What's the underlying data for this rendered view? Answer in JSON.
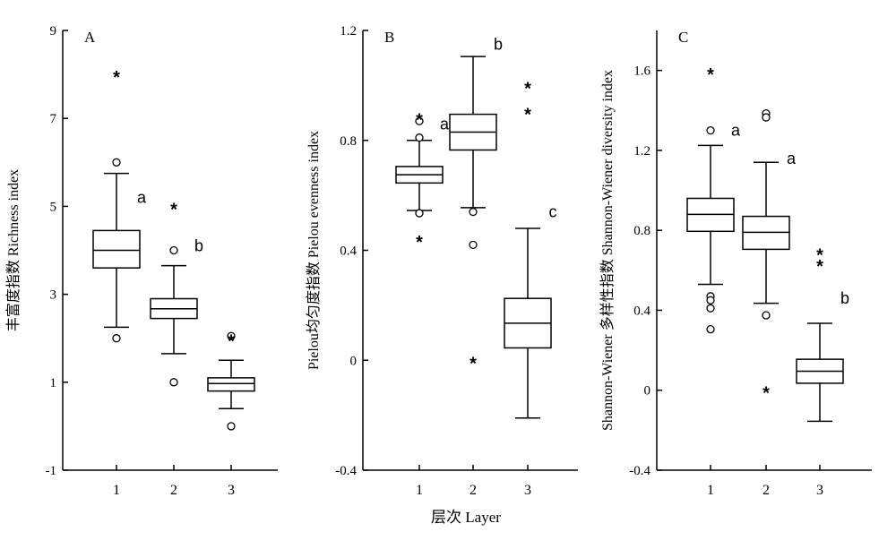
{
  "chart_data": [
    {
      "type": "box",
      "panel_label": "A",
      "ylabel": "丰富度指数 Richness index",
      "ylim": [
        -1,
        9
      ],
      "yticks": [
        -1,
        1,
        3,
        5,
        7,
        9
      ],
      "categories": [
        "1",
        "2",
        "3"
      ],
      "boxes": [
        {
          "whisker_low": 2.25,
          "q1": 3.6,
          "median": 4.0,
          "q3": 4.45,
          "whisker_high": 5.75,
          "outliers": [
            6.0,
            2.0
          ],
          "extremes": [
            8.0
          ],
          "letter": "a",
          "letter_y": 5.2
        },
        {
          "whisker_low": 1.65,
          "q1": 2.45,
          "median": 2.67,
          "q3": 2.9,
          "whisker_high": 3.65,
          "outliers": [
            4.0,
            1.0
          ],
          "extremes": [
            5.0
          ],
          "letter": "b",
          "letter_y": 4.1
        },
        {
          "whisker_low": 0.4,
          "q1": 0.8,
          "median": 0.97,
          "q3": 1.1,
          "whisker_high": 1.5,
          "outliers": [
            2.05,
            0.0
          ],
          "extremes": [
            2.0
          ],
          "letter": "",
          "letter_y": null
        }
      ]
    },
    {
      "type": "box",
      "panel_label": "B",
      "ylabel": "Pielou均匀度指数 Pielou evenness index",
      "ylim": [
        -0.4,
        1.2
      ],
      "yticks": [
        -0.4,
        0,
        0.4,
        0.8,
        1.2
      ],
      "categories": [
        "1",
        "2",
        "3"
      ],
      "boxes": [
        {
          "whisker_low": 0.545,
          "q1": 0.645,
          "median": 0.675,
          "q3": 0.705,
          "whisker_high": 0.8,
          "outliers": [
            0.81,
            0.87,
            0.535
          ],
          "extremes": [
            0.885,
            0.44
          ],
          "letter": "a",
          "letter_y": 0.86
        },
        {
          "whisker_low": 0.555,
          "q1": 0.765,
          "median": 0.83,
          "q3": 0.895,
          "whisker_high": 1.105,
          "outliers": [
            0.54,
            0.42
          ],
          "extremes": [
            0.0
          ],
          "letter": "b",
          "letter_y": 1.15
        },
        {
          "whisker_low": -0.21,
          "q1": 0.045,
          "median": 0.135,
          "q3": 0.225,
          "whisker_high": 0.48,
          "outliers": [],
          "extremes": [
            1.0,
            0.905
          ],
          "letter": "c",
          "letter_y": 0.54
        }
      ]
    },
    {
      "type": "box",
      "panel_label": "C",
      "ylabel": "Shannon-Wiener 多样性指数 Shannon-Wiener diversity index",
      "ylim": [
        -0.4,
        1.8
      ],
      "yticks": [
        -0.4,
        0,
        0.4,
        0.8,
        1.2,
        1.6
      ],
      "categories": [
        "1",
        "2",
        "3"
      ],
      "boxes": [
        {
          "whisker_low": 0.53,
          "q1": 0.795,
          "median": 0.88,
          "q3": 0.96,
          "whisker_high": 1.225,
          "outliers": [
            1.3,
            0.47,
            0.45,
            0.41,
            0.305
          ],
          "extremes": [
            1.595
          ],
          "letter": "a",
          "letter_y": 1.3
        },
        {
          "whisker_low": 0.435,
          "q1": 0.705,
          "median": 0.79,
          "q3": 0.87,
          "whisker_high": 1.14,
          "outliers": [
            1.385,
            1.365,
            0.375
          ],
          "extremes": [
            0.0
          ],
          "letter": "a",
          "letter_y": 1.16
        },
        {
          "whisker_low": -0.155,
          "q1": 0.035,
          "median": 0.095,
          "q3": 0.155,
          "whisker_high": 0.335,
          "outliers": [],
          "extremes": [
            0.69,
            0.635
          ],
          "letter": "b",
          "letter_y": 0.46
        }
      ]
    }
  ],
  "xlabel": "层次 Layer"
}
